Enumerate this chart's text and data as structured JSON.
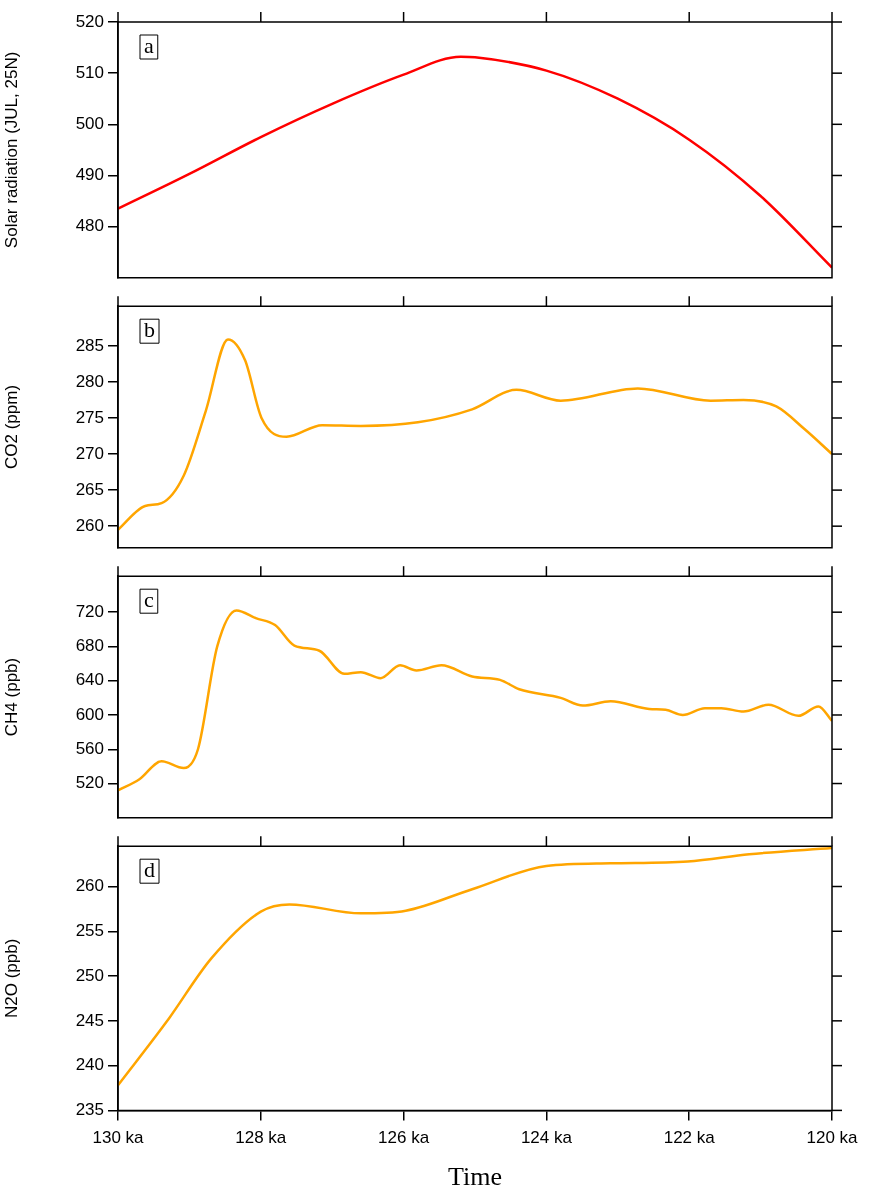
{
  "chart_data": [
    {
      "type": "line",
      "ylabel": "Solar radiation (JUL, 25N)",
      "annotations": [
        "a"
      ],
      "tick_labels": "y",
      "grid": false,
      "xlim": [
        130,
        120
      ],
      "xticks": [
        {
          "value": 130,
          "label": null
        },
        {
          "value": 128,
          "label": null
        },
        {
          "value": 126,
          "label": null
        },
        {
          "value": 124,
          "label": null
        },
        {
          "value": 122,
          "label": null
        },
        {
          "value": 120,
          "label": null
        }
      ],
      "ylim": [
        470,
        520
      ],
      "yticks": [
        480,
        490,
        500,
        510,
        520
      ],
      "series": [
        {
          "color": "#ff0000",
          "x": [
            130,
            129,
            128,
            127,
            126,
            125.2,
            125,
            124,
            123,
            122,
            121,
            120
          ],
          "values": [
            483.5,
            490.3,
            497.5,
            504,
            509.7,
            513.2,
            513.1,
            510.5,
            505,
            497,
            486,
            472
          ]
        }
      ]
    },
    {
      "type": "line",
      "ylabel": "CO2 (ppm)",
      "annotations": [
        "b"
      ],
      "tick_labels": "y",
      "grid": false,
      "xlim": [
        130,
        120
      ],
      "xticks": [
        {
          "value": 130,
          "label": null
        },
        {
          "value": 128,
          "label": null
        },
        {
          "value": 126,
          "label": null
        },
        {
          "value": 124,
          "label": null
        },
        {
          "value": 122,
          "label": null
        },
        {
          "value": 120,
          "label": null
        }
      ],
      "ylim": [
        257,
        290.5
      ],
      "yticks": [
        260,
        265,
        270,
        275,
        280,
        285
      ],
      "series": [
        {
          "color": "#ffa500",
          "x": [
            130,
            129.62,
            129.39,
            129.08,
            128.77,
            128.46,
            128.22,
            127.99,
            127.64,
            127.14,
            126.6,
            125.8,
            125.04,
            124.42,
            123.8,
            122.72,
            121.7,
            121.24,
            120.78,
            120.39,
            120
          ],
          "values": [
            259.5,
            262.8,
            263.2,
            267,
            276,
            285.9,
            283,
            275,
            272.4,
            274,
            273.9,
            274.4,
            276.2,
            278.9,
            277.4,
            279.1,
            277.4,
            277.5,
            276.6,
            273.5,
            270
          ]
        }
      ]
    },
    {
      "type": "line",
      "ylabel": "CH4 (ppb)",
      "annotations": [
        "c"
      ],
      "tick_labels": "y",
      "grid": false,
      "xlim": [
        130,
        120
      ],
      "xticks": [
        {
          "value": 130,
          "label": null
        },
        {
          "value": 128,
          "label": null
        },
        {
          "value": 126,
          "label": null
        },
        {
          "value": 124,
          "label": null
        },
        {
          "value": 122,
          "label": null
        },
        {
          "value": 120,
          "label": null
        }
      ],
      "ylim": [
        480,
        762
      ],
      "yticks": [
        520,
        560,
        600,
        640,
        680,
        720
      ],
      "series": [
        {
          "color": "#ffa500",
          "x": [
            130,
            129.7,
            129.39,
            129.08,
            128.88,
            128.61,
            128.34,
            128.07,
            127.8,
            127.53,
            127.18,
            126.83,
            126.6,
            126.32,
            126.05,
            125.82,
            125.47,
            125.04,
            124.65,
            124.38,
            123.8,
            123.49,
            123.1,
            122.56,
            122.33,
            122.09,
            121.78,
            121.55,
            121.24,
            120.89,
            120.47,
            120.19,
            120
          ],
          "values": [
            512,
            525,
            546,
            538,
            560,
            680,
            722,
            713,
            705,
            681,
            675,
            648,
            650,
            643,
            658,
            652,
            658,
            645,
            641,
            630,
            620,
            611,
            616,
            607,
            606,
            600,
            608,
            608,
            604,
            612,
            599,
            610,
            593
          ]
        }
      ]
    },
    {
      "type": "line",
      "ylabel": "N2O (ppb)",
      "xlabel": "Time",
      "annotations": [
        "d"
      ],
      "grid": false,
      "xlim": [
        130,
        120
      ],
      "xticks": [
        {
          "value": 130,
          "label": "130 ka"
        },
        {
          "value": 128,
          "label": "128 ka"
        },
        {
          "value": 126,
          "label": "126 ka"
        },
        {
          "value": 124,
          "label": "124 ka"
        },
        {
          "value": 122,
          "label": "122 ka"
        },
        {
          "value": 120,
          "label": "120 ka"
        }
      ],
      "ylim": [
        235,
        264.5
      ],
      "yticks": [
        235,
        240,
        245,
        250,
        255,
        260
      ],
      "series": [
        {
          "color": "#ffa500",
          "x": [
            130,
            129.31,
            128.69,
            128,
            127.6,
            126.6,
            125.97,
            125.04,
            124,
            123.1,
            122.02,
            121.16,
            120
          ],
          "values": [
            237.8,
            245,
            252,
            257.2,
            258,
            257,
            257.3,
            259.7,
            262.3,
            262.6,
            262.8,
            263.6,
            264.3
          ]
        }
      ]
    }
  ]
}
